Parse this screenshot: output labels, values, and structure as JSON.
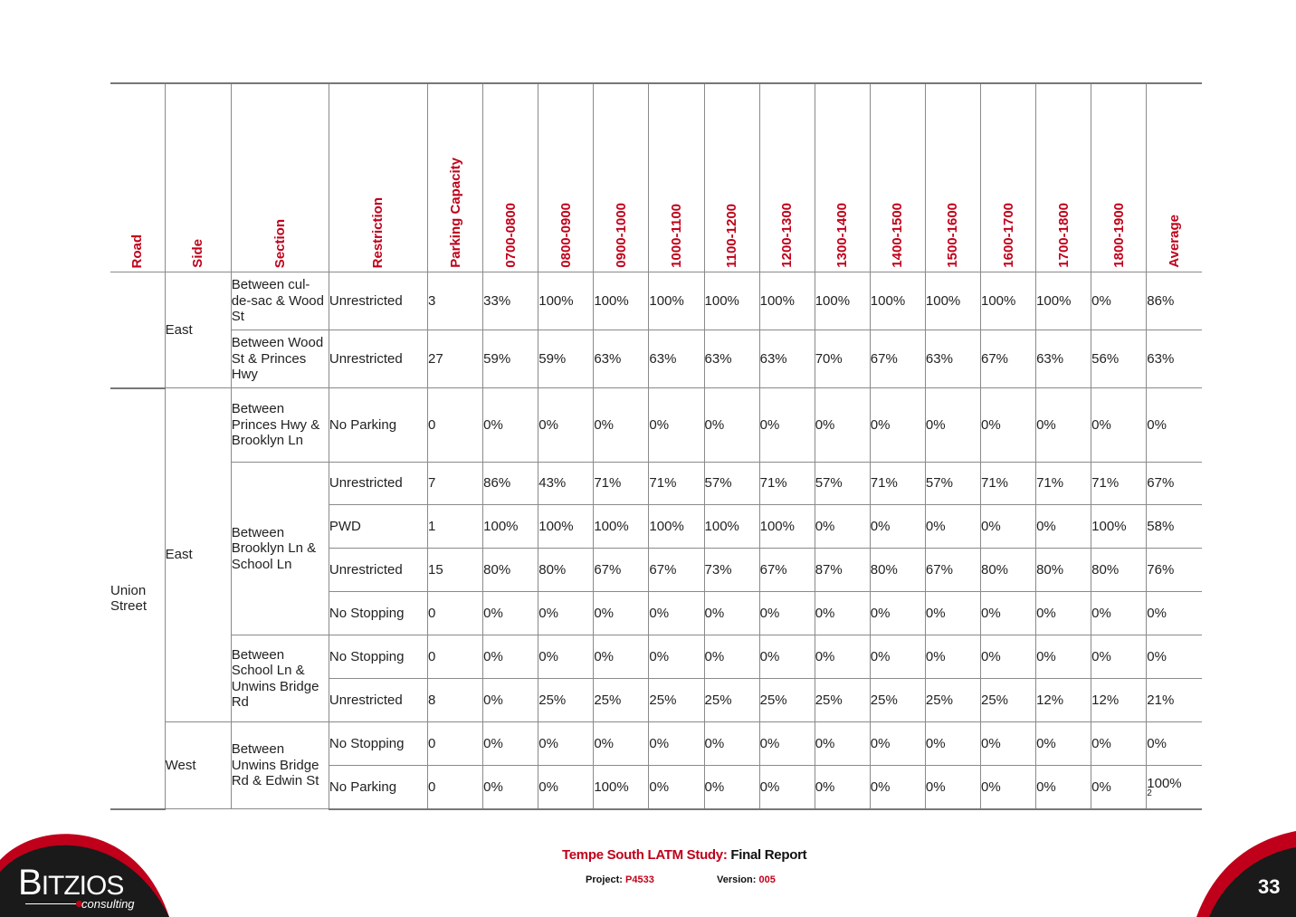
{
  "headers": {
    "road": "Road",
    "side": "Side",
    "section": "Section",
    "restriction": "Restriction",
    "capacity": "Parking Capacity",
    "times": [
      "0700-0800",
      "0800-0900",
      "0900-1000",
      "1000-1100",
      "1100-1200",
      "1200-1300",
      "1300-1400",
      "1400-1500",
      "1500-1600",
      "1600-1700",
      "1700-1800",
      "1800-1900"
    ],
    "average": "Average"
  },
  "road": {
    "name": "Union Street"
  },
  "sides": {
    "east1": "East",
    "east2": "East",
    "west": "West"
  },
  "sections": {
    "s1": "Between cul-de-sac & Wood St",
    "s2": "Between Wood St & Princes Hwy",
    "s3": "Between Princes Hwy & Brooklyn Ln",
    "s4": "Between Brooklyn Ln & School Ln",
    "s5": "Between School Ln & Unwins Bridge Rd",
    "s6": "Between Unwins Bridge Rd & Edwin St"
  },
  "rows": [
    {
      "restriction": "Unrestricted",
      "capacity": "3",
      "values": [
        "33%",
        "100%",
        "100%",
        "100%",
        "100%",
        "100%",
        "100%",
        "100%",
        "100%",
        "100%",
        "100%",
        "0%"
      ],
      "average": "86%"
    },
    {
      "restriction": "Unrestricted",
      "capacity": "27",
      "values": [
        "59%",
        "59%",
        "63%",
        "63%",
        "63%",
        "63%",
        "70%",
        "67%",
        "63%",
        "67%",
        "63%",
        "56%"
      ],
      "average": "63%"
    },
    {
      "restriction": "No Parking",
      "capacity": "0",
      "values": [
        "0%",
        "0%",
        "0%",
        "0%",
        "0%",
        "0%",
        "0%",
        "0%",
        "0%",
        "0%",
        "0%",
        "0%"
      ],
      "average": "0%"
    },
    {
      "restriction": "Unrestricted",
      "capacity": "7",
      "values": [
        "86%",
        "43%",
        "71%",
        "71%",
        "57%",
        "71%",
        "57%",
        "71%",
        "57%",
        "71%",
        "71%",
        "71%"
      ],
      "average": "67%"
    },
    {
      "restriction": "PWD",
      "capacity": "1",
      "values": [
        "100%",
        "100%",
        "100%",
        "100%",
        "100%",
        "100%",
        "0%",
        "0%",
        "0%",
        "0%",
        "0%",
        "100%"
      ],
      "average": "58%"
    },
    {
      "restriction": "Unrestricted",
      "capacity": "15",
      "values": [
        "80%",
        "80%",
        "67%",
        "67%",
        "73%",
        "67%",
        "87%",
        "80%",
        "67%",
        "80%",
        "80%",
        "80%"
      ],
      "average": "76%"
    },
    {
      "restriction": "No Stopping",
      "capacity": "0",
      "values": [
        "0%",
        "0%",
        "0%",
        "0%",
        "0%",
        "0%",
        "0%",
        "0%",
        "0%",
        "0%",
        "0%",
        "0%"
      ],
      "average": "0%"
    },
    {
      "restriction": "No Stopping",
      "capacity": "0",
      "values": [
        "0%",
        "0%",
        "0%",
        "0%",
        "0%",
        "0%",
        "0%",
        "0%",
        "0%",
        "0%",
        "0%",
        "0%"
      ],
      "average": "0%"
    },
    {
      "restriction": "Unrestricted",
      "capacity": "8",
      "values": [
        "0%",
        "25%",
        "25%",
        "25%",
        "25%",
        "25%",
        "25%",
        "25%",
        "25%",
        "25%",
        "12%",
        "12%"
      ],
      "average": "21%"
    },
    {
      "restriction": "No Stopping",
      "capacity": "0",
      "values": [
        "0%",
        "0%",
        "0%",
        "0%",
        "0%",
        "0%",
        "0%",
        "0%",
        "0%",
        "0%",
        "0%",
        "0%"
      ],
      "average": "0%"
    },
    {
      "restriction": "No Parking",
      "capacity": "0",
      "values": [
        "0%",
        "0%",
        "100%",
        "0%",
        "0%",
        "0%",
        "0%",
        "0%",
        "0%",
        "0%",
        "0%",
        "0%"
      ],
      "average": "100%",
      "footnote": "2"
    }
  ],
  "footer": {
    "study_red": "Tempe South LATM Study:",
    "study_black": " Final Report",
    "project_label": "Project:",
    "project_value": "P4533",
    "version_label": "Version:",
    "version_value": "005",
    "page": "33"
  },
  "logo": {
    "brand_first": "B",
    "brand_rest": "ITZIOS",
    "sub": "consulting"
  },
  "colors": {
    "accent": "#c0001a",
    "logo_bg": "#1a1a1a",
    "text": "#222222"
  }
}
